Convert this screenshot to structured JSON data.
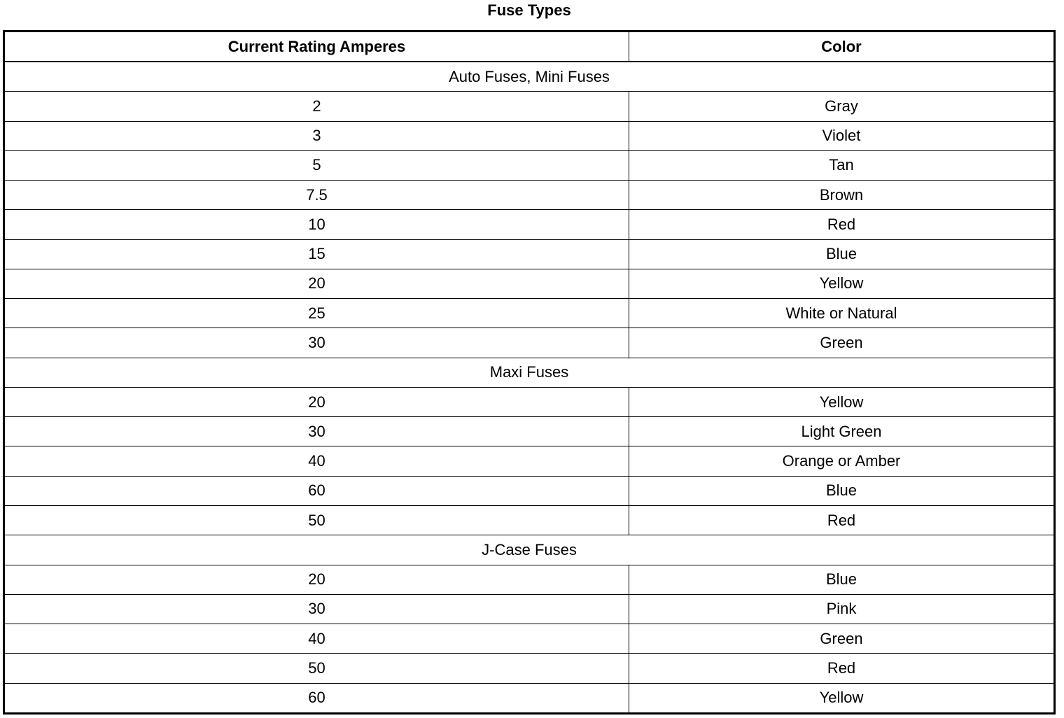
{
  "title": "Fuse Types",
  "headers": [
    "Current Rating Amperes",
    "Color"
  ],
  "groups": [
    {
      "name": "Auto Fuses, Mini Fuses",
      "rows": [
        [
          "2",
          "Gray"
        ],
        [
          "3",
          "Violet"
        ],
        [
          "5",
          "Tan"
        ],
        [
          "7.5",
          "Brown"
        ],
        [
          "10",
          "Red"
        ],
        [
          "15",
          "Blue"
        ],
        [
          "20",
          "Yellow"
        ],
        [
          "25",
          "White or Natural"
        ],
        [
          "30",
          "Green"
        ]
      ]
    },
    {
      "name": "Maxi Fuses",
      "rows": [
        [
          "20",
          "Yellow"
        ],
        [
          "30",
          "Light Green"
        ],
        [
          "40",
          "Orange or Amber"
        ],
        [
          "60",
          "Blue"
        ],
        [
          "50",
          "Red"
        ]
      ]
    },
    {
      "name": "J-Case Fuses",
      "rows": [
        [
          "20",
          "Blue"
        ],
        [
          "30",
          "Pink"
        ],
        [
          "40",
          "Green"
        ],
        [
          "50",
          "Red"
        ],
        [
          "60",
          "Yellow"
        ]
      ]
    }
  ]
}
